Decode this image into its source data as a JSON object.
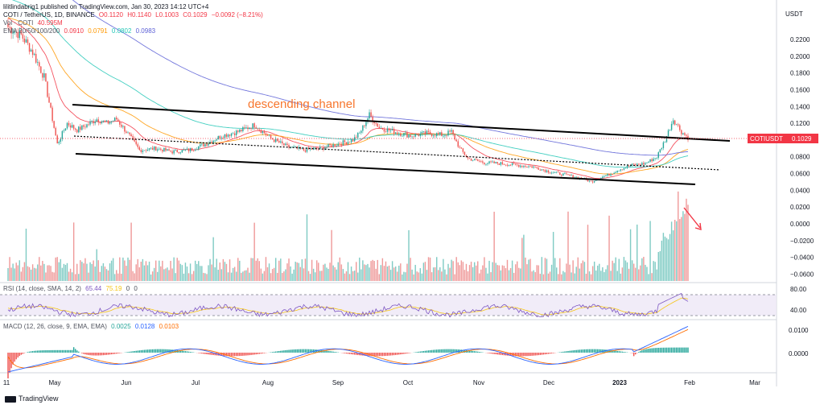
{
  "header": {
    "published_line": "lilitlindabrig1 published on TradingView.com, Jan 30, 2023 14:12 UTC+4",
    "symbol_line": "COTI / TetherUS, 1D, BINANCE",
    "ohlc": {
      "o": "O0.1120",
      "h": "H0.1140",
      "l": "L0.1003",
      "c": "C0.1029",
      "change": "−0.0092 (−8.21%)"
    },
    "vol_label": "Vol · COTI",
    "vol_value": "40.595M",
    "ema_label": "EMA 20/50/100/200",
    "ema_values": [
      "0.0910",
      "0.0791",
      "0.0802",
      "0.0983"
    ],
    "ema_colors": [
      "#f23645",
      "#ff9800",
      "#22c7b6",
      "#5b5fd6"
    ],
    "rsi_label": "RSI (14, close, SMA, 14, 2)",
    "rsi_values": [
      "65.44",
      "75.19",
      "0",
      "0"
    ],
    "macd_label": "MACD (12, 26, close, 9, EMA, EMA)",
    "macd_values": [
      "0.0025",
      "0.0128",
      "0.0103"
    ]
  },
  "price_badge": {
    "symbol": "COTIUSDT",
    "value": "0.1029",
    "color": "#f23645"
  },
  "annotation": "descending channel",
  "footer": {
    "brand": "TradingView"
  },
  "chart_data": {
    "type": "candlestick",
    "currency": "USDT",
    "x_ticks": [
      "11",
      "May",
      "Jun",
      "Jul",
      "Aug",
      "Sep",
      "Oct",
      "Nov",
      "Dec",
      "2023",
      "Feb",
      "Mar"
    ],
    "y_ticks_price": [
      "0.2200",
      "0.2000",
      "0.1800",
      "0.1600",
      "0.1400",
      "0.1200",
      "0.1000",
      "0.0800",
      "0.0600",
      "0.0400",
      "0.0200",
      "0.0000",
      "−0.0200",
      "−0.0400",
      "−0.0600"
    ],
    "rsi_ticks": [
      "80.00",
      "40.00"
    ],
    "macd_ticks": [
      "0.0100",
      "0.0000"
    ],
    "close_path": [
      [
        0,
        0.235
      ],
      [
        8,
        0.225
      ],
      [
        15,
        0.205
      ],
      [
        22,
        0.175
      ],
      [
        30,
        0.095
      ],
      [
        36,
        0.12
      ],
      [
        42,
        0.112
      ],
      [
        48,
        0.118
      ],
      [
        54,
        0.125
      ],
      [
        60,
        0.12
      ],
      [
        66,
        0.125
      ],
      [
        72,
        0.11
      ],
      [
        80,
        0.088
      ],
      [
        90,
        0.09
      ],
      [
        100,
        0.086
      ],
      [
        110,
        0.088
      ],
      [
        120,
        0.095
      ],
      [
        130,
        0.105
      ],
      [
        140,
        0.11
      ],
      [
        150,
        0.118
      ],
      [
        160,
        0.102
      ],
      [
        170,
        0.092
      ],
      [
        180,
        0.088
      ],
      [
        190,
        0.09
      ],
      [
        200,
        0.095
      ],
      [
        210,
        0.1
      ],
      [
        214,
        0.108
      ],
      [
        220,
        0.13
      ],
      [
        226,
        0.115
      ],
      [
        235,
        0.11
      ],
      [
        245,
        0.105
      ],
      [
        255,
        0.108
      ],
      [
        265,
        0.106
      ],
      [
        270,
        0.11
      ],
      [
        275,
        0.09
      ],
      [
        280,
        0.078
      ],
      [
        290,
        0.073
      ],
      [
        300,
        0.072
      ],
      [
        310,
        0.07
      ],
      [
        320,
        0.068
      ],
      [
        330,
        0.062
      ],
      [
        340,
        0.058
      ],
      [
        350,
        0.054
      ],
      [
        355,
        0.05
      ],
      [
        360,
        0.055
      ],
      [
        365,
        0.058
      ],
      [
        372,
        0.065
      ],
      [
        380,
        0.07
      ],
      [
        388,
        0.072
      ],
      [
        395,
        0.08
      ],
      [
        400,
        0.1
      ],
      [
        405,
        0.125
      ],
      [
        410,
        0.11
      ],
      [
        414,
        0.1029
      ]
    ]
  }
}
